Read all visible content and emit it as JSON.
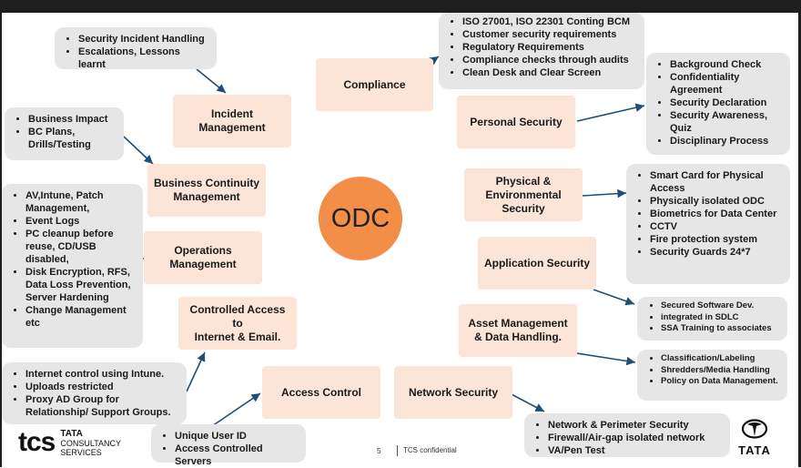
{
  "center": {
    "label": "ODC"
  },
  "boxes": {
    "incident": "Incident\nManagement",
    "bcm": "Business Continuity\nManagement",
    "operations": "Operations\nManagement",
    "controlled_access": "Controlled Access to\nInternet & Email.",
    "access_control": "Access Control",
    "network_security": "Network Security",
    "compliance": "Compliance",
    "personal_security": "Personal Security",
    "physical": "Physical &\nEnvironmental\nSecurity",
    "application": "Application Security",
    "asset": "Asset Management\n& Data Handling."
  },
  "lists": {
    "incident": [
      "Security Incident Handling",
      "Escalations, Lessons learnt"
    ],
    "bcm": [
      "Business Impact",
      "BC Plans, Drills/Testing"
    ],
    "operations": [
      "AV,Intune, Patch Management,",
      "Event Logs",
      "PC cleanup before reuse, CD/USB disabled,",
      "Disk Encryption, RFS, Data Loss Prevention, Server Hardening",
      "Change Management etc"
    ],
    "internet": [
      "Internet control using Intune.",
      "Uploads restricted",
      "Proxy AD Group for Relationship/ Support Groups."
    ],
    "access": [
      "Unique User ID",
      "Access Controlled Servers"
    ],
    "network": [
      "Network & Perimeter Security",
      "Firewall/Air-gap isolated network",
      "VA/Pen Test"
    ],
    "compliance": [
      "ISO 27001, ISO 22301 Conting BCM",
      "Customer security requirements",
      "Regulatory Requirements",
      "Compliance checks through audits",
      "Clean Desk and Clear Screen"
    ],
    "personal": [
      "Background Check",
      "Confidentiality Agreement",
      "Security Declaration",
      "Security Awareness, Quiz",
      "Disciplinary Process"
    ],
    "physical": [
      "Smart Card for Physical Access",
      "Physically isolated ODC",
      "Biometrics for Data Center",
      "CCTV",
      "Fire protection system",
      "Security Guards 24*7"
    ],
    "application": [
      "Secured Software Dev.",
      "integrated in SDLC",
      "SSA Training to associates"
    ],
    "asset": [
      "Classification/Labeling",
      "Shredders/Media Handling",
      "Policy on Data Management."
    ]
  },
  "footer": {
    "page": "5",
    "confidential": "TCS confidential"
  },
  "logos": {
    "tcs_mark": "tcs",
    "tcs_line1": "TATA",
    "tcs_line2": "CONSULTANCY",
    "tcs_line3": "SERVICES",
    "tata": "TATA"
  },
  "colors": {
    "box": "#fce4d6",
    "list": "#e6e6e6",
    "center": "#f28e48",
    "arrow": "#1f4e79"
  }
}
